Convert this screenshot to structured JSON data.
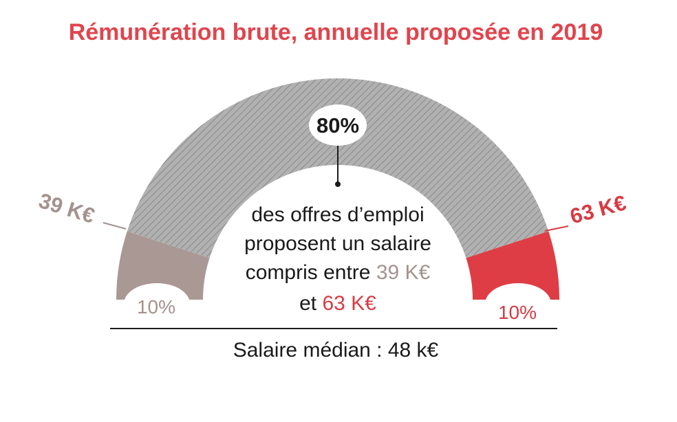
{
  "title": "Rémunération brute, annuelle proposée en 2019",
  "median_label": "Salaire médian : 48 k€",
  "center_text": {
    "line1": "des offres d’emploi",
    "line2": "proposent un salaire",
    "line3_prefix": "compris entre ",
    "line3_value": "39 K€",
    "line4_prefix": "et ",
    "line4_value": "63 K€"
  },
  "colors": {
    "title": "#e0454d",
    "low_segment": "#aa9894",
    "middle_segment": "#a7a7a7",
    "high_segment": "#df3d45",
    "low_text": "#a3928e",
    "high_text": "#d93a42"
  },
  "chart_data": {
    "type": "pie",
    "variant": "semi-circle gauge",
    "title": "Rémunération brute, annuelle proposée en 2019",
    "series": [
      {
        "label": "10%",
        "value": 10,
        "color": "#aa9894",
        "bound_label": "39 K€"
      },
      {
        "label": "80%",
        "value": 80,
        "color": "#a7a7a7",
        "pattern": "diagonal-hatch"
      },
      {
        "label": "10%",
        "value": 10,
        "color": "#df3d45",
        "bound_label": "63 K€"
      }
    ],
    "median": "Salaire médian : 48 k€"
  }
}
